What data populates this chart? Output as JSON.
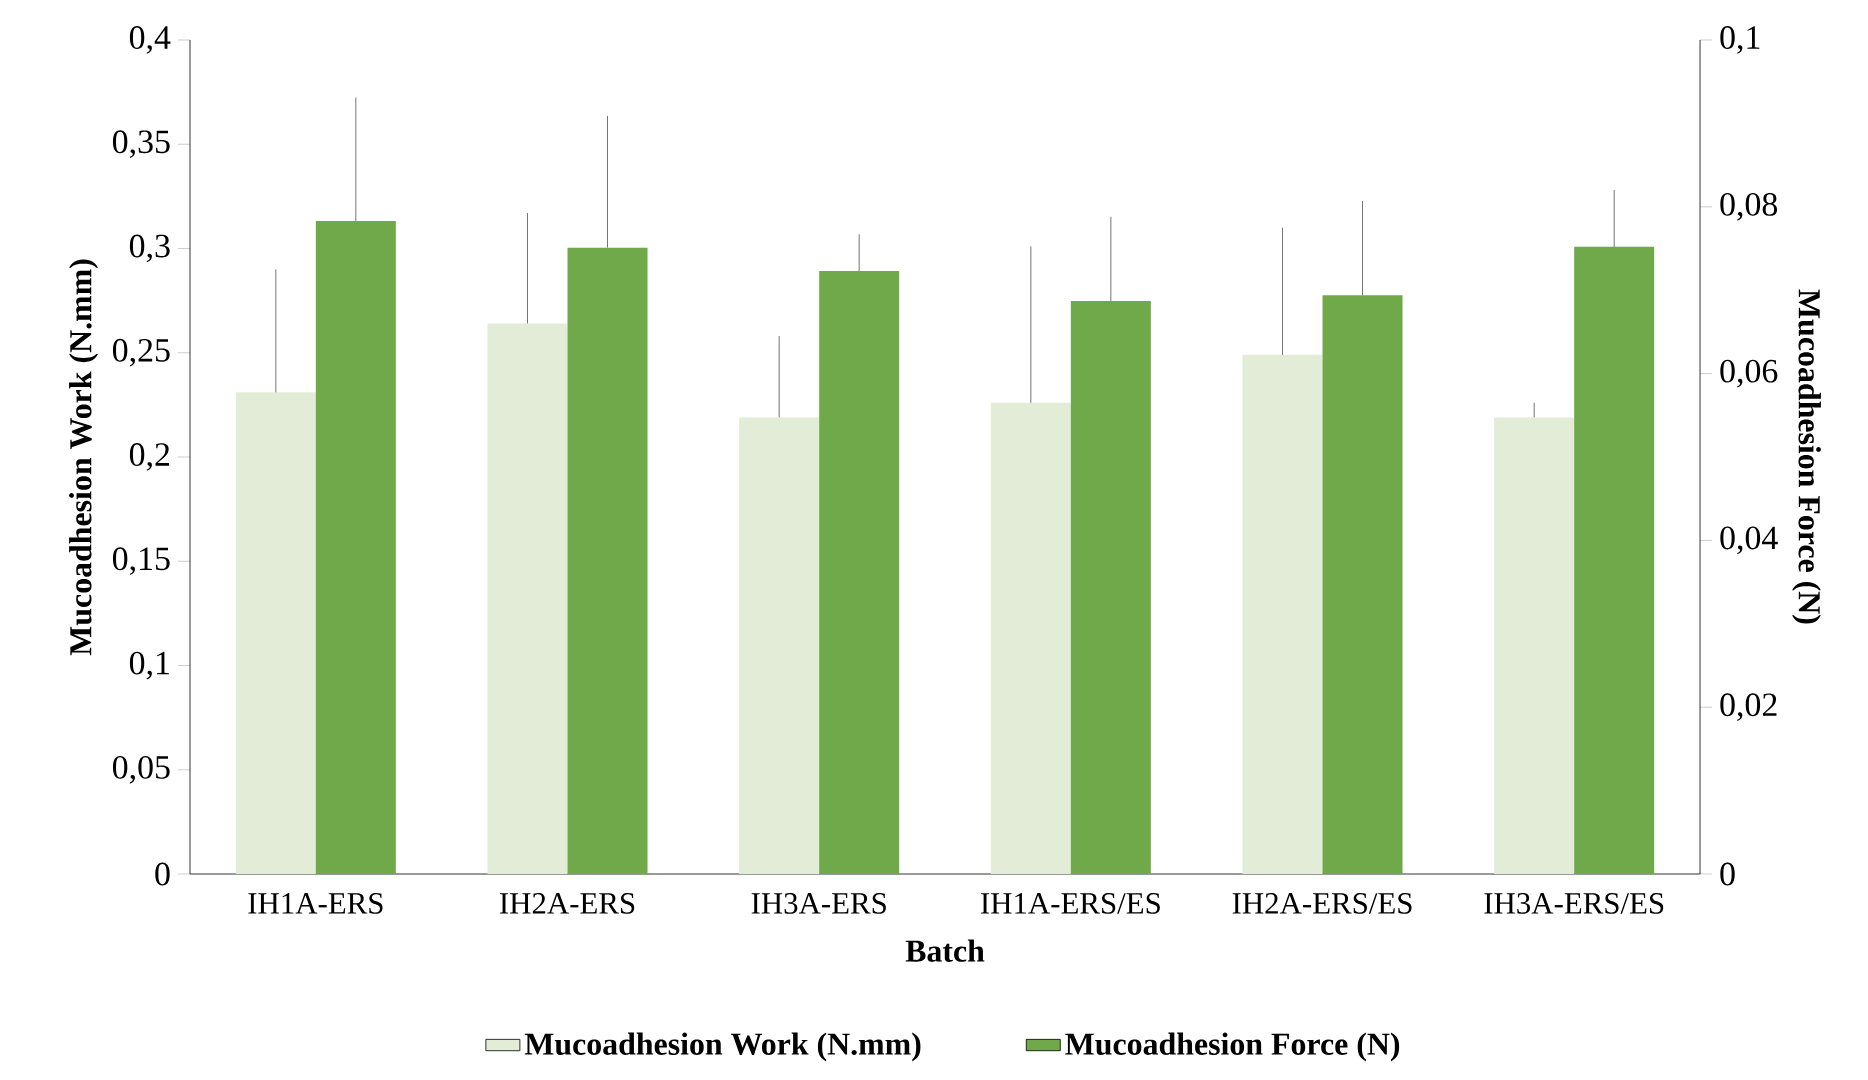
{
  "chart_data": {
    "type": "bar",
    "xlabel": "Batch",
    "ylabel": "Mucoadhesion Work (N.mm)",
    "y2label": "Mucoadhesion Force (N)",
    "categories": [
      "IH1A-ERS",
      "IH2A-ERS",
      "IH3A-ERS",
      "IH1A-ERS/ES",
      "IH2A-ERS/ES",
      "IH3A-ERS/ES"
    ],
    "series": [
      {
        "name": "Mucoadhesion Work (N.mm)",
        "color": "#e2ecd6",
        "values": [
          0.231,
          0.264,
          0.219,
          0.226,
          0.249,
          0.219
        ],
        "errors": [
          [
            0.231,
            0.29
          ],
          [
            0.264,
            0.317
          ],
          [
            0.219,
            0.258
          ],
          [
            0.226,
            0.301
          ],
          [
            0.249,
            0.31
          ],
          [
            0.219,
            0.226
          ]
        ]
      },
      {
        "name": "Mucoadhesion Force (N)",
        "color": "#70a94a",
        "axis": "y2",
        "values": [
          0.0783,
          0.0751,
          0.0723,
          0.0687,
          0.0694,
          0.0752
        ],
        "errors": [
          [
            0.0783,
            0.0931
          ],
          [
            0.0751,
            0.0909
          ],
          [
            0.0723,
            0.0767
          ],
          [
            0.0687,
            0.0788
          ],
          [
            0.0694,
            0.0807
          ],
          [
            0.0752,
            0.082
          ]
        ]
      }
    ],
    "ylim": [
      0,
      0.4
    ],
    "yticks": [
      0,
      {
        "value": 0.05,
        "label": "0,05"
      },
      {
        "value": 0.1,
        "label": "0,1"
      },
      {
        "value": 0.15,
        "label": "0,15"
      },
      {
        "value": 0.2,
        "label": "0,2"
      },
      {
        "value": 0.25,
        "label": "0,25"
      },
      {
        "value": 0.3,
        "label": "0,3"
      },
      {
        "value": 0.35,
        "label": "0,35"
      },
      {
        "value": 0.4,
        "label": "0,4"
      }
    ],
    "y2lim": [
      0,
      0.1
    ],
    "y2ticks": [
      0,
      {
        "value": 0.02,
        "label": "0,02"
      },
      {
        "value": 0.04,
        "label": "0,04"
      },
      {
        "value": 0.06,
        "label": "0,06"
      },
      {
        "value": 0.08,
        "label": "0,08"
      },
      {
        "value": 0.1,
        "label": "0,1"
      }
    ],
    "grid": false,
    "legend": "bottom"
  }
}
